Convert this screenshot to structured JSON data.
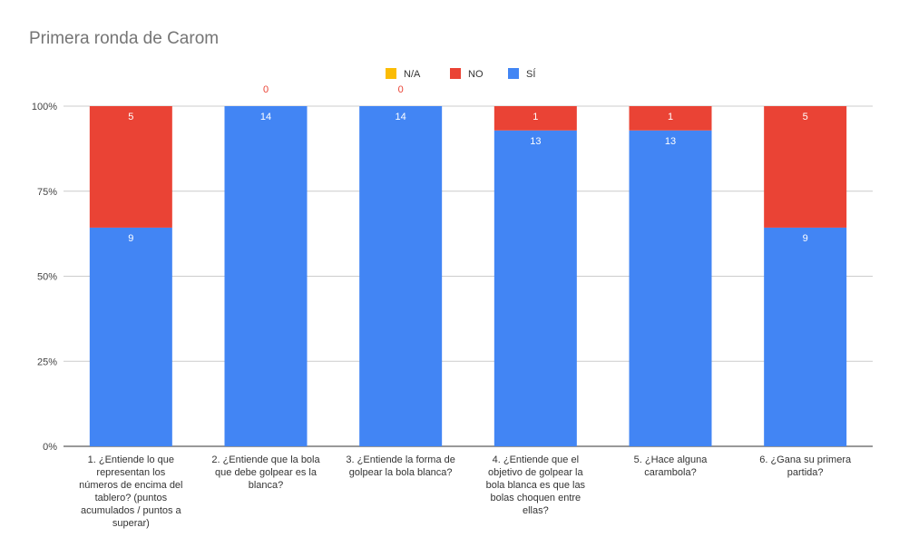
{
  "chart_data": {
    "type": "bar",
    "stacked": "percent",
    "title": "Primera ronda de Carom",
    "xlabel": "",
    "ylabel": "",
    "ylim": [
      0,
      100
    ],
    "y_ticks": [
      "0%",
      "25%",
      "50%",
      "75%",
      "100%"
    ],
    "legend_position": "top",
    "grid": true,
    "categories": [
      [
        "1. ¿Entiende lo que",
        "representan los",
        "números de encima del",
        "tablero? (puntos",
        "acumulados  / puntos a",
        "superar)"
      ],
      [
        "2. ¿Entiende que la bola",
        "que debe golpear es la",
        "blanca?"
      ],
      [
        "3. ¿Entiende la forma de",
        "golpear la bola blanca?"
      ],
      [
        "4. ¿Entiende que el",
        "objetivo de golpear la",
        "bola blanca es que las",
        "bolas choquen entre",
        "ellas?"
      ],
      [
        "5. ¿Hace alguna",
        "carambola?"
      ],
      [
        "6. ¿Gana su primera",
        "partida?"
      ]
    ],
    "series": [
      {
        "name": "SÍ",
        "color": "#4285f4",
        "values": [
          9,
          14,
          14,
          13,
          13,
          9
        ],
        "labels": [
          "9",
          "14",
          "14",
          "13",
          "13",
          "9"
        ]
      },
      {
        "name": "NO",
        "color": "#ea4335",
        "values": [
          5,
          0,
          0,
          1,
          1,
          5
        ],
        "labels": [
          "5",
          "0",
          "0",
          "1",
          "1",
          "5"
        ]
      },
      {
        "name": "N/A",
        "color": "#fbbc04",
        "values": [
          0,
          0,
          0,
          0,
          0,
          0
        ],
        "labels": [
          "",
          "",
          "",
          "",
          "",
          ""
        ]
      }
    ],
    "legend_order": [
      "N/A",
      "NO",
      "SÍ"
    ]
  }
}
